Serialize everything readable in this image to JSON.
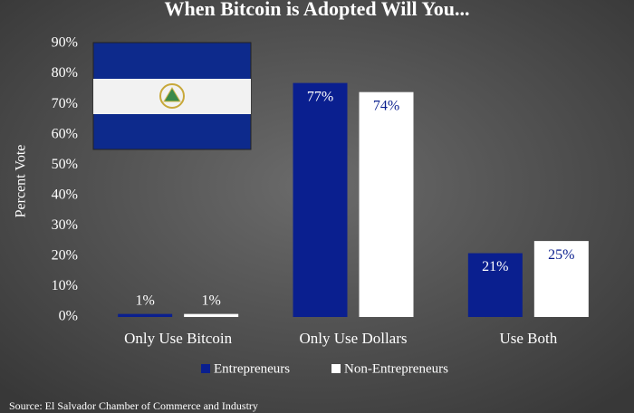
{
  "chart_data": {
    "type": "bar",
    "title": "When Bitcoin is Adopted Will You...",
    "y_label": "Percent Vote",
    "source": "Source: El Salvador Chamber of Commerce and Industry",
    "categories": [
      "Only Use Bitcoin",
      "Only Use Dollars",
      "Use Both"
    ],
    "series": [
      {
        "name": "Entrepreneurs",
        "color": "#0a1f8f",
        "label_color": "#ffffff",
        "values": [
          1,
          77,
          21
        ],
        "value_labels": [
          "1%",
          "77%",
          "21%"
        ]
      },
      {
        "name": "Non-Entrepreneurs",
        "color": "#ffffff",
        "label_color": "#0a1f8f",
        "values": [
          1,
          74,
          25
        ],
        "value_labels": [
          "1%",
          "74%",
          "25%"
        ]
      }
    ],
    "ylim": [
      0,
      90
    ],
    "yticks": [
      {
        "value": 0,
        "label": "0%"
      },
      {
        "value": 10,
        "label": "10%"
      },
      {
        "value": 20,
        "label": "20%"
      },
      {
        "value": 30,
        "label": "30%"
      },
      {
        "value": 40,
        "label": "40%"
      },
      {
        "value": 50,
        "label": "50%"
      },
      {
        "value": 60,
        "label": "60%"
      },
      {
        "value": 70,
        "label": "70%"
      },
      {
        "value": 80,
        "label": "80%"
      },
      {
        "value": 90,
        "label": "90%"
      }
    ],
    "grid": false,
    "legend": "bottom"
  }
}
